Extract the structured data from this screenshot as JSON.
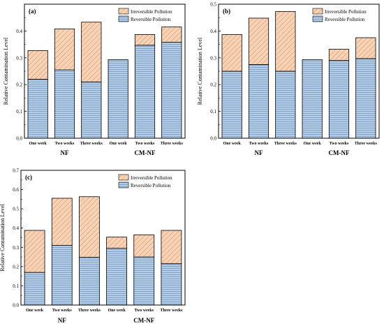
{
  "ylabel": "Relative Contamination Level",
  "legend": {
    "irreversible": "Irreversible Pollution",
    "reversible": "Reversible Pollution"
  },
  "groups": [
    "NF",
    "CM-NF"
  ],
  "colors": {
    "reversible_fill": "#b3cde6",
    "reversible_line": "#6d8fb8",
    "irreversible_fill": "#f7d3b5",
    "irreversible_line": "#d9876a",
    "frame": "#000000"
  },
  "chart_data": [
    {
      "panel": "(a)",
      "type": "bar",
      "stacked": true,
      "categories": [
        "One week",
        "Two weeks",
        "Three weeks",
        "One week",
        "Two weeks",
        "Three weeks"
      ],
      "series": [
        {
          "name": "Reversible Pollution",
          "values": [
            0.22,
            0.255,
            0.21,
            0.293,
            0.347,
            0.358
          ]
        },
        {
          "name": "Irreversible Pollution",
          "values": [
            0.107,
            0.153,
            0.223,
            0.0,
            0.04,
            0.057
          ]
        }
      ],
      "ylim": [
        0,
        0.5
      ],
      "yticks": [
        "0.0",
        "0.1",
        "0.2",
        "0.3",
        "0.4"
      ],
      "legend_position": "top-right"
    },
    {
      "panel": "(b)",
      "type": "bar",
      "stacked": true,
      "categories": [
        "One week",
        "Two weeks",
        "Three weeks",
        "One week",
        "Two weeks",
        "Three weeks"
      ],
      "series": [
        {
          "name": "Reversible Pollution",
          "values": [
            0.25,
            0.275,
            0.25,
            0.293,
            0.29,
            0.297
          ]
        },
        {
          "name": "Irreversible Pollution",
          "values": [
            0.137,
            0.173,
            0.223,
            0.0,
            0.042,
            0.078
          ]
        }
      ],
      "ylim": [
        0,
        0.5
      ],
      "yticks": [
        "0.0",
        "0.1",
        "0.2",
        "0.3",
        "0.4",
        "0.5"
      ],
      "legend_position": "top-right"
    },
    {
      "panel": "(c)",
      "type": "bar",
      "stacked": true,
      "categories": [
        "One week",
        "Two weeks",
        "Three weeks",
        "One week",
        "Two weeks",
        "Three weeks"
      ],
      "series": [
        {
          "name": "Reversible Pollution",
          "values": [
            0.17,
            0.31,
            0.248,
            0.295,
            0.25,
            0.215
          ]
        },
        {
          "name": "Irreversible Pollution",
          "values": [
            0.218,
            0.245,
            0.315,
            0.058,
            0.115,
            0.173
          ]
        }
      ],
      "ylim": [
        0,
        0.7
      ],
      "yticks": [
        "0.0",
        "0.1",
        "0.2",
        "0.3",
        "0.4",
        "0.5",
        "0.6",
        "0.7"
      ],
      "legend_position": "top-right"
    }
  ]
}
